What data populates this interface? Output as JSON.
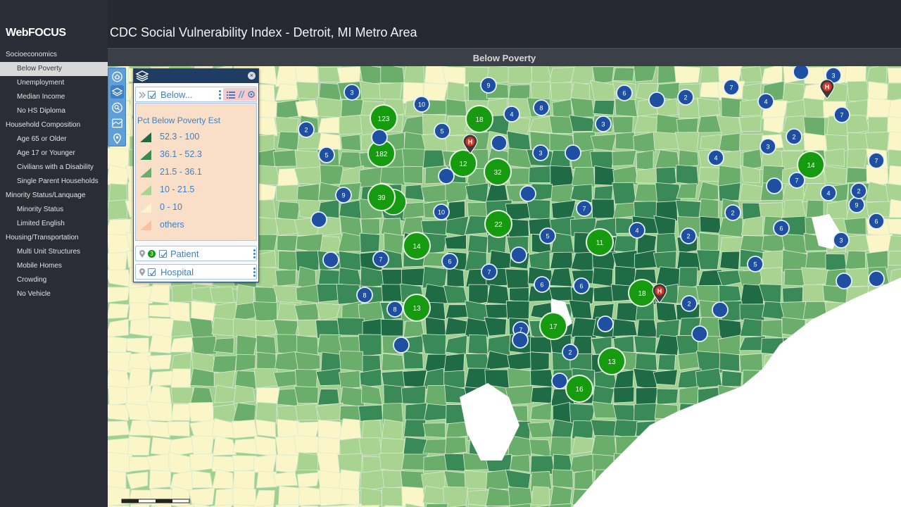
{
  "app": {
    "logo": "WebFOCUS",
    "title": "CDC Social Vulnerability Index - Detroit, MI Metro Area",
    "map_title": "Below Poverty"
  },
  "sidebar": {
    "items": [
      {
        "label": "Socioeconomics",
        "kind": "group"
      },
      {
        "label": "Below Poverty",
        "kind": "item",
        "selected": true
      },
      {
        "label": "Unemployment",
        "kind": "item"
      },
      {
        "label": "Median Income",
        "kind": "item"
      },
      {
        "label": "No HS Diploma",
        "kind": "item"
      },
      {
        "label": "Household Composition",
        "kind": "group"
      },
      {
        "label": "Age 65 or Older",
        "kind": "item"
      },
      {
        "label": "Age 17 or Younger",
        "kind": "item"
      },
      {
        "label": "Civilians with a Disability",
        "kind": "item"
      },
      {
        "label": "Single Parent Households",
        "kind": "item"
      },
      {
        "label": "Minority Status/Lanquage",
        "kind": "group"
      },
      {
        "label": "Minority Status",
        "kind": "item"
      },
      {
        "label": "Limited English",
        "kind": "item"
      },
      {
        "label": "Housing/Transportation",
        "kind": "group"
      },
      {
        "label": "Multi Unit Structures",
        "kind": "item"
      },
      {
        "label": "Mobile Homes",
        "kind": "item"
      },
      {
        "label": "Crowding",
        "kind": "item"
      },
      {
        "label": "No Vehicle",
        "kind": "item"
      }
    ]
  },
  "map_tools": [
    "home-icon",
    "layers-icon",
    "search-icon",
    "basemap-icon",
    "location-icon"
  ],
  "layer_panel": {
    "layers": [
      {
        "label": "Below...",
        "checked": true
      },
      {
        "label": "Patient",
        "checked": true,
        "badge": "3"
      },
      {
        "label": "Hospital",
        "checked": true
      }
    ],
    "legend": {
      "title": "Pct Below Poverty Est",
      "classes": [
        {
          "label": "52.3 - 100",
          "color": "#1f6b45"
        },
        {
          "label": "36.1 - 52.3",
          "color": "#3a8a57"
        },
        {
          "label": "21.5 - 36.1",
          "color": "#6bae6b"
        },
        {
          "label": "10 - 21.5",
          "color": "#a8d391"
        },
        {
          "label": "0 - 10",
          "color": "#fbf6c8"
        },
        {
          "label": "others",
          "color": "#f7c29f"
        }
      ]
    }
  },
  "colors": {
    "cluster": "#159a10",
    "point": "#1f4fa0",
    "hospital_marker": "#d8352a",
    "water": "#ffffff"
  },
  "clusters": [
    {
      "count": "123"
    },
    {
      "count": "182"
    },
    {
      "count": "39"
    },
    {
      "count": "18"
    },
    {
      "count": "12"
    },
    {
      "count": "32"
    },
    {
      "count": "22"
    },
    {
      "count": "14"
    },
    {
      "count": "13"
    },
    {
      "count": "11"
    },
    {
      "count": "18"
    },
    {
      "count": "17"
    },
    {
      "count": "13"
    },
    {
      "count": "16"
    },
    {
      "count": "14"
    }
  ],
  "points": [
    {
      "count": "3"
    },
    {
      "count": "9"
    },
    {
      "count": "10"
    },
    {
      "count": "4"
    },
    {
      "count": "8"
    },
    {
      "count": "2"
    },
    {
      "count": "5"
    },
    {
      "count": "5"
    },
    {
      "count": "3"
    },
    {
      "count": "6"
    },
    {
      "count": "2"
    },
    {
      "count": "7"
    },
    {
      "count": "4"
    },
    {
      "count": "2"
    },
    {
      "count": "7"
    },
    {
      "count": "3"
    },
    {
      "count": "4"
    },
    {
      "count": "3"
    },
    {
      "count": "7"
    },
    {
      "count": "3"
    },
    {
      "count": "2"
    },
    {
      "count": "7"
    },
    {
      "count": "6"
    },
    {
      "count": "9"
    },
    {
      "count": "10"
    },
    {
      "count": "7"
    },
    {
      "count": "7"
    },
    {
      "count": "2"
    },
    {
      "count": "6"
    },
    {
      "count": "5"
    },
    {
      "count": "4"
    },
    {
      "count": "9"
    },
    {
      "count": "6"
    },
    {
      "count": "3"
    },
    {
      "count": "8"
    },
    {
      "count": "7"
    },
    {
      "count": "6"
    },
    {
      "count": "6"
    },
    {
      "count": "8"
    },
    {
      "count": "2"
    },
    {
      "count": "5"
    },
    {
      "count": "2"
    },
    {
      "count": "7"
    },
    {
      "count": "2"
    },
    {
      "count": "4"
    },
    {
      "count": ""
    },
    {
      "count": ""
    },
    {
      "count": ""
    },
    {
      "count": ""
    },
    {
      "count": ""
    },
    {
      "count": ""
    },
    {
      "count": ""
    },
    {
      "count": ""
    },
    {
      "count": ""
    },
    {
      "count": ""
    },
    {
      "count": ""
    },
    {
      "count": ""
    },
    {
      "count": ""
    },
    {
      "count": ""
    },
    {
      "count": ""
    },
    {
      "count": ""
    },
    {
      "count": ""
    },
    {
      "count": ""
    },
    {
      "count": ""
    }
  ],
  "hospitals": [
    {
      "label": "H"
    },
    {
      "label": "H"
    },
    {
      "label": "H"
    }
  ]
}
